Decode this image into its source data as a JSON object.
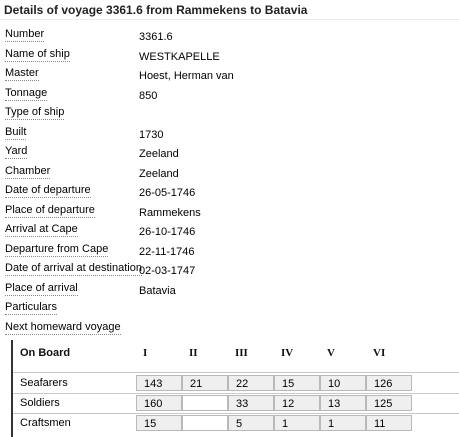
{
  "header": {
    "title": "Details of voyage 3361.6 from Rammekens to Batavia"
  },
  "details": [
    {
      "label": "Number",
      "value": "3361.6"
    },
    {
      "label": "Name of ship",
      "value": "WESTKAPELLE"
    },
    {
      "label": "Master",
      "value": "Hoest, Herman van"
    },
    {
      "label": "Tonnage",
      "value": "850"
    },
    {
      "label": "Type of ship",
      "value": ""
    },
    {
      "label": "Built",
      "value": "1730"
    },
    {
      "label": "Yard",
      "value": "Zeeland"
    },
    {
      "label": "Chamber",
      "value": "Zeeland"
    },
    {
      "label": "Date of departure",
      "value": "26-05-1746"
    },
    {
      "label": "Place of departure",
      "value": "Rammekens"
    },
    {
      "label": "Arrival at Cape",
      "value": "26-10-1746"
    },
    {
      "label": "Departure from Cape",
      "value": "22-11-1746"
    },
    {
      "label": "Date of arrival at destination",
      "value": "02-03-1747"
    },
    {
      "label": "Place of arrival",
      "value": "Batavia"
    },
    {
      "label": "Particulars",
      "value": ""
    },
    {
      "label": "Next homeward voyage",
      "value": ""
    }
  ],
  "onboard": {
    "heading": "On Board",
    "columns": [
      "I",
      "II",
      "III",
      "IV",
      "V",
      "VI"
    ],
    "rows": [
      {
        "label": "Seafarers",
        "cells": [
          "143",
          "21",
          "22",
          "15",
          "10",
          "126"
        ]
      },
      {
        "label": "Soldiers",
        "cells": [
          "160",
          "",
          "33",
          "12",
          "13",
          "125"
        ]
      },
      {
        "label": "Craftsmen",
        "cells": [
          "15",
          "",
          "5",
          "1",
          "1",
          "11"
        ]
      }
    ]
  }
}
